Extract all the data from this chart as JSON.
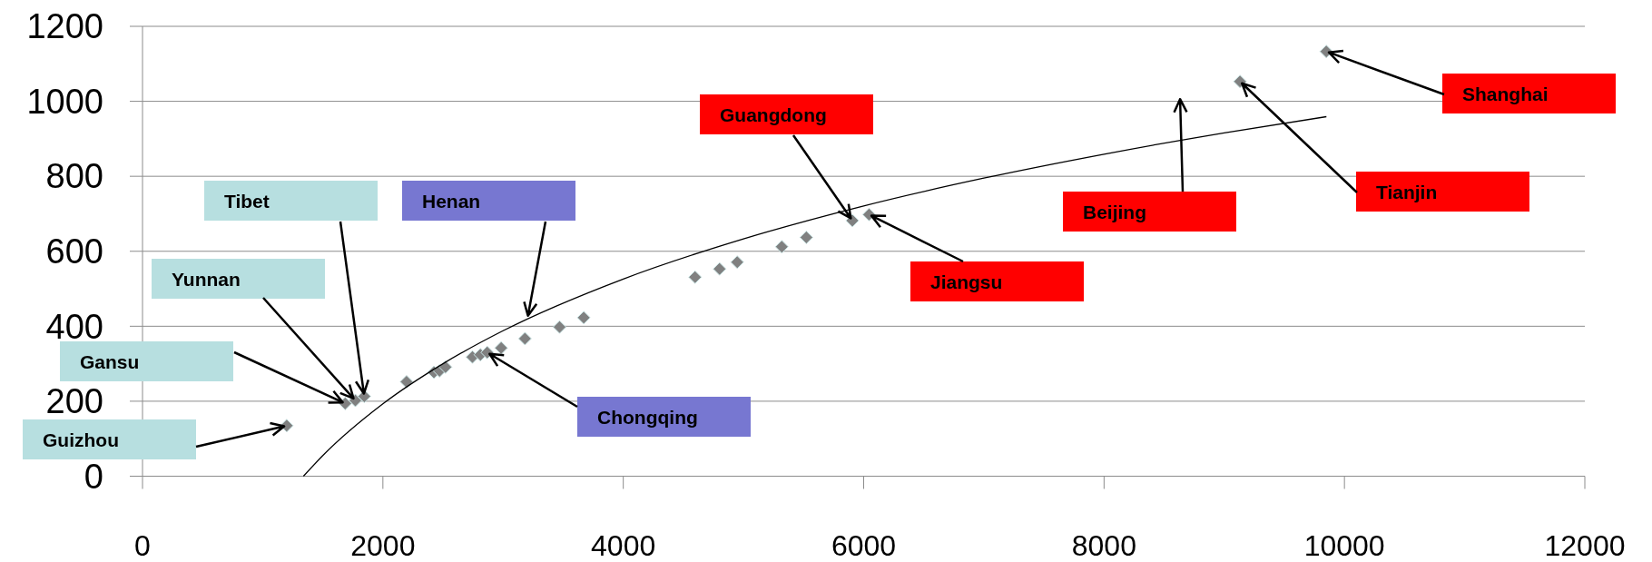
{
  "chart_data": {
    "type": "scatter",
    "xlim": [
      0,
      12000
    ],
    "ylim": [
      0,
      1200
    ],
    "xticks": [
      0,
      2000,
      4000,
      6000,
      8000,
      10000,
      12000
    ],
    "yticks": [
      0,
      200,
      400,
      600,
      800,
      1000,
      1200
    ],
    "grid": "y",
    "series": [
      {
        "type": "scatter",
        "color": "#808080",
        "marker": "diamond",
        "x": [
          1200,
          1686,
          1771,
          1845,
          2197,
          2425,
          2471,
          2521,
          2745,
          2811,
          2868,
          2984,
          3182,
          3470,
          3671,
          4597,
          4801,
          4948,
          5319,
          5523,
          5906,
          6045,
          9131,
          9849
        ],
        "values": [
          135,
          194,
          202,
          213,
          252,
          277,
          281,
          291,
          318,
          324,
          330,
          342,
          367,
          398,
          423,
          531,
          553,
          571,
          612,
          637,
          682,
          698,
          1053,
          1133
        ]
      },
      {
        "type": "line",
        "color": "#000000",
        "marker": "none",
        "line_style": "solid",
        "x": [
          1339,
          1500,
          2000,
          2500,
          3000,
          4000,
          5000,
          6000,
          7000,
          8000,
          9000,
          9850
        ],
        "values": [
          0,
          55,
          193,
          300,
          388,
          526,
          633,
          721,
          795,
          859,
          916,
          959
        ]
      }
    ],
    "annotations": [
      "Guizhou",
      "Gansu",
      {
        "text": "Yunnan",
        "x": 1771,
        "y": 202
      },
      "Tibet",
      "Henan",
      {
        "text": "Chongqing",
        "x": 2868,
        "y": 330
      },
      {
        "text": "Guangdong",
        "x": 5906,
        "y": 682
      },
      {
        "text": "Jiangsu",
        "x": 6045,
        "y": 698
      },
      "Beijing",
      {
        "text": "Tianjin",
        "x": 9131,
        "y": 1053
      },
      {
        "text": "Shanghai",
        "x": 9849,
        "y": 1133
      }
    ]
  }
}
